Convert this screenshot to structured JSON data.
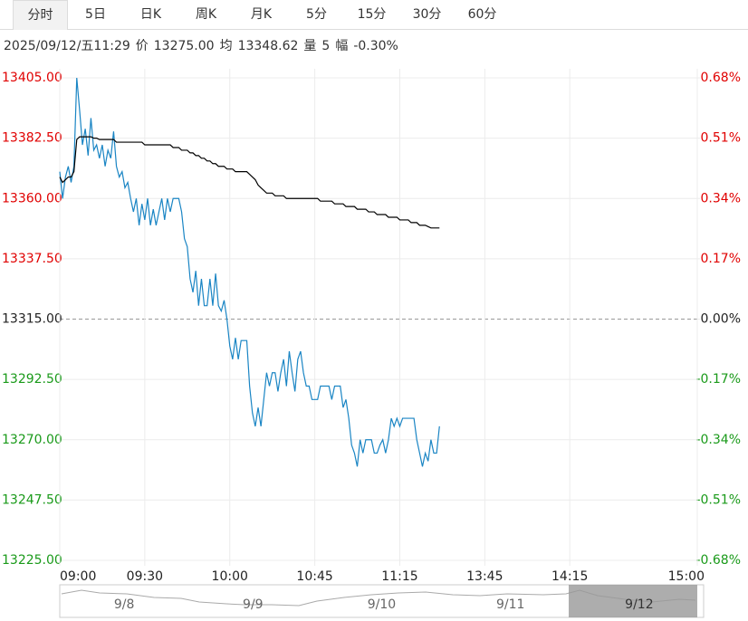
{
  "tabs": [
    "分时",
    "5日",
    "日K",
    "周K",
    "月K",
    "5分",
    "15分",
    "30分",
    "60分"
  ],
  "selected_tab": 0,
  "info": {
    "time": "2025/09/12/五11:29",
    "items": [
      {
        "label": "价",
        "value": "13275.00"
      },
      {
        "label": "均",
        "value": "13348.62"
      },
      {
        "label": "量",
        "value": "5"
      },
      {
        "label": "幅",
        "value": "-0.30%"
      }
    ]
  },
  "chart_data": {
    "type": "line",
    "x": [
      0,
      1,
      2,
      3,
      4,
      5,
      6,
      7,
      8,
      9,
      10,
      11,
      12,
      13,
      14,
      15,
      16,
      17,
      18,
      19,
      20,
      21,
      22,
      23,
      24,
      25,
      26,
      27,
      28,
      29,
      30,
      31,
      32,
      33,
      34,
      35,
      36,
      37,
      38,
      39,
      40,
      41,
      42,
      43,
      44,
      45,
      46,
      47,
      48,
      49,
      50,
      51,
      52,
      53,
      54,
      55,
      56,
      57,
      58,
      59,
      60,
      61,
      62,
      63,
      64,
      65,
      66,
      67,
      68,
      69,
      70,
      71,
      72,
      73,
      74,
      75,
      76,
      77,
      78,
      79,
      80,
      81,
      82,
      83,
      84,
      85,
      86,
      87,
      88,
      89,
      90,
      91,
      92,
      93,
      94,
      95,
      96,
      97,
      98,
      99,
      100,
      101,
      102,
      103,
      104,
      105,
      106,
      107,
      108,
      109,
      110,
      111,
      112,
      113,
      114,
      115,
      116,
      117,
      118,
      119,
      120,
      121,
      122,
      123,
      124,
      125,
      126,
      127,
      128,
      129,
      130,
      131,
      132,
      133,
      134
    ],
    "series": [
      {
        "color": "#1a85c4",
        "values": [
          13370,
          13360,
          13368,
          13372,
          13366,
          13372,
          13405,
          13393,
          13380,
          13386,
          13376,
          13390,
          13378,
          13380,
          13375,
          13380,
          13372,
          13378,
          13375,
          13385,
          13372,
          13368,
          13370,
          13364,
          13366,
          13360,
          13355,
          13360,
          13350,
          13358,
          13352,
          13360,
          13350,
          13356,
          13350,
          13355,
          13360,
          13352,
          13360,
          13355,
          13360,
          13360,
          13360,
          13355,
          13345,
          13342,
          13330,
          13325,
          13333,
          13320,
          13330,
          13320,
          13320,
          13330,
          13320,
          13332,
          13320,
          13318,
          13322,
          13315,
          13305,
          13300,
          13308,
          13300,
          13307,
          13307,
          13307,
          13290,
          13280,
          13275,
          13282,
          13275,
          13285,
          13295,
          13290,
          13295,
          13295,
          13288,
          13295,
          13300,
          13290,
          13303,
          13295,
          13288,
          13300,
          13303,
          13295,
          13290,
          13290,
          13285,
          13285,
          13285,
          13290,
          13290,
          13290,
          13290,
          13285,
          13290,
          13290,
          13290,
          13282,
          13285,
          13278,
          13268,
          13265,
          13260,
          13270,
          13265,
          13270,
          13270,
          13270,
          13265,
          13265,
          13268,
          13270,
          13265,
          13270,
          13278,
          13275,
          13278,
          13275,
          13278,
          13278,
          13278,
          13278,
          13278,
          13270,
          13265,
          13260,
          13265,
          13262,
          13270,
          13265,
          13265,
          13275
        ]
      },
      {
        "color": "#000000",
        "values": [
          13368,
          13366,
          13367,
          13368,
          13368,
          13370,
          13382,
          13383,
          13383,
          13383,
          13383,
          13383,
          13382.5,
          13382.5,
          13382,
          13382,
          13382,
          13382,
          13382,
          13382,
          13381,
          13381,
          13381,
          13381,
          13381,
          13381,
          13381,
          13381,
          13381,
          13381,
          13380,
          13380,
          13380,
          13380,
          13380,
          13380,
          13380,
          13380,
          13380,
          13380,
          13379,
          13379,
          13379,
          13378,
          13378,
          13378,
          13377,
          13377,
          13376,
          13376,
          13375,
          13375,
          13374,
          13374,
          13373,
          13373,
          13372,
          13372,
          13372,
          13371,
          13371,
          13371,
          13370,
          13370,
          13370,
          13370,
          13370,
          13369,
          13368,
          13367,
          13365,
          13364,
          13363,
          13362,
          13362,
          13362,
          13361,
          13361,
          13361,
          13361,
          13360,
          13360,
          13360,
          13360,
          13360,
          13360,
          13360,
          13360,
          13360,
          13360,
          13360,
          13360,
          13359,
          13359,
          13359,
          13359,
          13359,
          13358,
          13358,
          13358,
          13358,
          13357,
          13357,
          13357,
          13357,
          13356,
          13356,
          13356,
          13356,
          13355,
          13355,
          13355,
          13354,
          13354,
          13354,
          13354,
          13353,
          13353,
          13353,
          13353,
          13352,
          13352,
          13352,
          13352,
          13351,
          13351,
          13351,
          13350,
          13350,
          13350,
          13349.5,
          13349,
          13349,
          13349,
          13349
        ]
      }
    ],
    "xlim": [
      0,
      225
    ],
    "xticks": [
      {
        "value": 0,
        "label": "09:00"
      },
      {
        "value": 30,
        "label": "09:30"
      },
      {
        "value": 60,
        "label": "10:00"
      },
      {
        "value": 90,
        "label": "10:45"
      },
      {
        "value": 120,
        "label": "11:15"
      },
      {
        "value": 150,
        "label": "13:45"
      },
      {
        "value": 180,
        "label": "14:15"
      },
      {
        "value": 225,
        "label": "15:00"
      }
    ],
    "ylim": [
      13225,
      13405
    ],
    "yticks": [
      {
        "value": 13405,
        "label": "13405.00"
      },
      {
        "value": 13382.5,
        "label": "13382.50"
      },
      {
        "value": 13360,
        "label": "13360.00"
      },
      {
        "value": 13337.5,
        "label": "13337.50"
      },
      {
        "value": 13315,
        "label": "13315.00"
      },
      {
        "value": 13292.5,
        "label": "13292.50"
      },
      {
        "value": 13270,
        "label": "13270.00"
      },
      {
        "value": 13247.5,
        "label": "13247.50"
      },
      {
        "value": 13225,
        "label": "13225.00"
      }
    ],
    "y2lim": [
      -0.68,
      0.68
    ],
    "y2ticks": [
      {
        "value": 0.68,
        "label": "0.68%"
      },
      {
        "value": 0.51,
        "label": "0.51%"
      },
      {
        "value": 0.34,
        "label": "0.34%"
      },
      {
        "value": 0.17,
        "label": "0.17%"
      },
      {
        "value": 0,
        "label": "0.00%"
      },
      {
        "value": -0.17,
        "label": "-0.17%"
      },
      {
        "value": -0.34,
        "label": "-0.34%"
      },
      {
        "value": -0.51,
        "label": "-0.51%"
      },
      {
        "value": -0.68,
        "label": "-0.68%"
      }
    ],
    "prev_close": 13315,
    "up_color": "#e00000",
    "down_color": "#1a9a1a",
    "flat_color": "#222222",
    "grid": true
  },
  "navigator": {
    "dates": [
      "9/8",
      "9/9",
      "9/10",
      "9/11",
      "9/12"
    ],
    "selected": 4
  }
}
